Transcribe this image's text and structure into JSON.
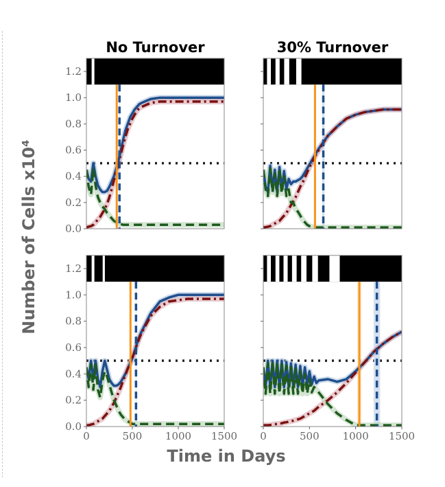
{
  "chart_data": {
    "type": "line",
    "ylabel": "Number of Cells x10⁴",
    "xlabel": "Time in Days",
    "xlim": [
      0,
      1500
    ],
    "ylim": [
      0,
      1.3
    ],
    "xticks": [
      "0",
      "500",
      "1000",
      "1500"
    ],
    "yticks": [
      "0.0",
      "0.2",
      "0.4",
      "0.6",
      "0.8",
      "1.0",
      "1.2"
    ],
    "threshold": 0.5,
    "colors": {
      "solid": "#1f4e8c",
      "dashdot": "#7b1010",
      "dashed": "#1e5a1e",
      "vline_orange": "#f7941d",
      "vline_blue": "#1f4e8c",
      "threshold": "#222222"
    },
    "x": [
      0,
      25,
      50,
      75,
      100,
      125,
      150,
      175,
      200,
      225,
      250,
      275,
      300,
      325,
      350,
      375,
      400,
      425,
      450,
      475,
      500,
      525,
      550,
      575,
      600,
      700,
      800,
      900,
      1000,
      1100,
      1200,
      1300,
      1400,
      1500
    ],
    "panels": [
      {
        "title": "No Turnover",
        "row": 0,
        "col": 0,
        "bar_white_intervals": [
          [
            57,
            87
          ]
        ],
        "vline_orange": 330,
        "vline_blue": 360,
        "vline_blue_band": 8,
        "vline_orange_band": 0,
        "series": [
          {
            "name": "solid-blue",
            "values": [
              0.45,
              0.38,
              0.36,
              0.5,
              0.4,
              0.33,
              0.3,
              0.28,
              0.28,
              0.29,
              0.32,
              0.36,
              0.4,
              0.46,
              0.52,
              0.6,
              0.68,
              0.75,
              0.8,
              0.85,
              0.88,
              0.91,
              0.93,
              0.95,
              0.96,
              0.99,
              1.0,
              1.0,
              1.0,
              1.0,
              1.0,
              1.0,
              1.0,
              1.0
            ]
          },
          {
            "name": "dashdot-red",
            "values": [
              0.01,
              0.015,
              0.02,
              0.03,
              0.05,
              0.07,
              0.09,
              0.12,
              0.15,
              0.19,
              0.24,
              0.3,
              0.37,
              0.44,
              0.5,
              0.57,
              0.64,
              0.7,
              0.76,
              0.8,
              0.84,
              0.87,
              0.9,
              0.92,
              0.93,
              0.96,
              0.97,
              0.97,
              0.97,
              0.97,
              0.97,
              0.97,
              0.97,
              0.97
            ]
          },
          {
            "name": "dashed-green",
            "values": [
              0.45,
              0.32,
              0.26,
              0.46,
              0.33,
              0.24,
              0.2,
              0.17,
              0.15,
              0.12,
              0.1,
              0.08,
              0.06,
              0.05,
              0.04,
              0.035,
              0.03,
              0.03,
              0.03,
              0.03,
              0.03,
              0.03,
              0.03,
              0.03,
              0.03,
              0.03,
              0.03,
              0.03,
              0.03,
              0.03,
              0.03,
              0.03,
              0.03,
              0.03
            ]
          }
        ]
      },
      {
        "title": "30% Turnover",
        "row": 0,
        "col": 1,
        "bar_white_intervals": [
          [
            40,
            82
          ],
          [
            132,
            177
          ],
          [
            226,
            281
          ],
          [
            356,
            413
          ]
        ],
        "vline_orange": 560,
        "vline_blue": 650,
        "vline_blue_band": 25,
        "vline_orange_band": 0,
        "series": [
          {
            "name": "solid-blue",
            "values": [
              0.45,
              0.32,
              0.28,
              0.48,
              0.3,
              0.45,
              0.28,
              0.47,
              0.3,
              0.44,
              0.3,
              0.38,
              0.34,
              0.36,
              0.36,
              0.37,
              0.38,
              0.4,
              0.43,
              0.46,
              0.49,
              0.52,
              0.55,
              0.58,
              0.61,
              0.71,
              0.78,
              0.84,
              0.87,
              0.89,
              0.9,
              0.91,
              0.91,
              0.91
            ]
          },
          {
            "name": "dashdot-red",
            "values": [
              0.01,
              0.012,
              0.015,
              0.02,
              0.03,
              0.04,
              0.05,
              0.06,
              0.08,
              0.1,
              0.12,
              0.15,
              0.18,
              0.21,
              0.24,
              0.28,
              0.32,
              0.35,
              0.39,
              0.43,
              0.47,
              0.5,
              0.54,
              0.57,
              0.6,
              0.71,
              0.78,
              0.84,
              0.87,
              0.89,
              0.9,
              0.91,
              0.91,
              0.91
            ]
          },
          {
            "name": "dashed-green",
            "values": [
              0.45,
              0.3,
              0.25,
              0.46,
              0.28,
              0.42,
              0.25,
              0.44,
              0.27,
              0.4,
              0.25,
              0.3,
              0.2,
              0.2,
              0.15,
              0.13,
              0.1,
              0.07,
              0.05,
              0.03,
              0.02,
              0.015,
              0.01,
              0.01,
              0.01,
              0.01,
              0.01,
              0.01,
              0.01,
              0.01,
              0.01,
              0.01,
              0.01,
              0.01
            ]
          }
        ]
      },
      {
        "title": "",
        "row": 1,
        "col": 0,
        "bar_white_intervals": [
          [
            57,
            87
          ],
          [
            177,
            201
          ]
        ],
        "vline_orange": 480,
        "vline_blue": 540,
        "vline_blue_band": 8,
        "vline_orange_band": 0,
        "series": [
          {
            "name": "solid-blue",
            "values": [
              0.45,
              0.36,
              0.5,
              0.36,
              0.5,
              0.36,
              0.3,
              0.42,
              0.5,
              0.43,
              0.36,
              0.33,
              0.31,
              0.31,
              0.32,
              0.34,
              0.37,
              0.4,
              0.44,
              0.48,
              0.52,
              0.57,
              0.63,
              0.68,
              0.72,
              0.86,
              0.95,
              0.98,
              1.0,
              1.0,
              1.0,
              1.0,
              1.0,
              1.0
            ]
          },
          {
            "name": "dashdot-red",
            "values": [
              0.01,
              0.01,
              0.015,
              0.02,
              0.03,
              0.04,
              0.05,
              0.06,
              0.08,
              0.1,
              0.12,
              0.15,
              0.18,
              0.22,
              0.26,
              0.3,
              0.35,
              0.39,
              0.44,
              0.48,
              0.52,
              0.57,
              0.62,
              0.67,
              0.71,
              0.84,
              0.91,
              0.95,
              0.96,
              0.97,
              0.97,
              0.97,
              0.97,
              0.97
            ]
          },
          {
            "name": "dashed-green",
            "values": [
              0.45,
              0.3,
              0.47,
              0.28,
              0.47,
              0.28,
              0.22,
              0.35,
              0.42,
              0.38,
              0.32,
              0.26,
              0.2,
              0.16,
              0.12,
              0.09,
              0.07,
              0.05,
              0.04,
              0.03,
              0.02,
              0.02,
              0.02,
              0.02,
              0.02,
              0.02,
              0.02,
              0.02,
              0.02,
              0.02,
              0.02,
              0.02,
              0.02,
              0.02
            ]
          }
        ]
      },
      {
        "title": "",
        "row": 1,
        "col": 1,
        "bar_white_intervals": [
          [
            40,
            82
          ],
          [
            132,
            174
          ],
          [
            219,
            264
          ],
          [
            311,
            361
          ],
          [
            410,
            468
          ],
          [
            530,
            592
          ],
          [
            716,
            828
          ]
        ],
        "vline_orange": 1040,
        "vline_blue": 1230,
        "vline_blue_band": 70,
        "vline_orange_band": 45,
        "series": [
          {
            "name": "solid-blue",
            "values": [
              0.45,
              0.3,
              0.5,
              0.3,
              0.5,
              0.3,
              0.5,
              0.3,
              0.5,
              0.3,
              0.49,
              0.3,
              0.48,
              0.3,
              0.47,
              0.3,
              0.46,
              0.3,
              0.45,
              0.32,
              0.42,
              0.32,
              0.38,
              0.33,
              0.35,
              0.36,
              0.34,
              0.36,
              0.42,
              0.49,
              0.57,
              0.63,
              0.68,
              0.72
            ]
          },
          {
            "name": "dashdot-red",
            "values": [
              0.01,
              0.01,
              0.01,
              0.012,
              0.015,
              0.018,
              0.02,
              0.022,
              0.025,
              0.03,
              0.033,
              0.037,
              0.04,
              0.045,
              0.05,
              0.055,
              0.06,
              0.07,
              0.08,
              0.09,
              0.1,
              0.11,
              0.12,
              0.135,
              0.15,
              0.2,
              0.26,
              0.33,
              0.41,
              0.49,
              0.57,
              0.63,
              0.68,
              0.72
            ]
          },
          {
            "name": "dashed-green",
            "values": [
              0.45,
              0.25,
              0.48,
              0.25,
              0.48,
              0.25,
              0.47,
              0.25,
              0.47,
              0.25,
              0.46,
              0.25,
              0.45,
              0.25,
              0.44,
              0.25,
              0.42,
              0.25,
              0.4,
              0.25,
              0.36,
              0.26,
              0.3,
              0.28,
              0.26,
              0.17,
              0.1,
              0.05,
              0.01,
              0.01,
              0.01,
              0.01,
              0.01,
              0.01
            ]
          }
        ]
      }
    ]
  }
}
